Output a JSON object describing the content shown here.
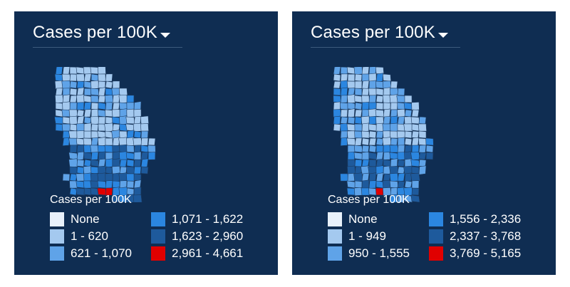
{
  "colors": {
    "panel_bg": "#0f2d52",
    "text": "#ffffff",
    "bin0": "#e8f1fb",
    "bin1": "#a4c9ef",
    "bin2": "#5fa3e8",
    "bin3": "#2b86e0",
    "bin4": "#1e5a9c",
    "bin5": "#e00000",
    "county_border": "#1d3a5e"
  },
  "panels": [
    {
      "dropdown_label": "Cases per 100K",
      "dropdown_icon": "caret-down-icon",
      "legend_title": "Cases per 100K",
      "legend": [
        {
          "label": "None",
          "bin": "bin0"
        },
        {
          "label": "1 - 620",
          "bin": "bin1"
        },
        {
          "label": "621 - 1,070",
          "bin": "bin2"
        },
        {
          "label": "1,071 - 1,622",
          "bin": "bin3"
        },
        {
          "label": "1,623 - 2,960",
          "bin": "bin4"
        },
        {
          "label": "2,961 - 4,661",
          "bin": "bin5"
        }
      ]
    },
    {
      "dropdown_label": "Cases per 100K",
      "dropdown_icon": "caret-down-icon",
      "legend_title": "Cases per 100K",
      "legend": [
        {
          "label": "None",
          "bin": "bin0"
        },
        {
          "label": "1 - 949",
          "bin": "bin1"
        },
        {
          "label": "950 - 1,555",
          "bin": "bin2"
        },
        {
          "label": "1,556 - 2,336",
          "bin": "bin3"
        },
        {
          "label": "2,337 - 3,768",
          "bin": "bin4"
        },
        {
          "label": "3,769 - 5,165",
          "bin": "bin5"
        }
      ]
    }
  ]
}
